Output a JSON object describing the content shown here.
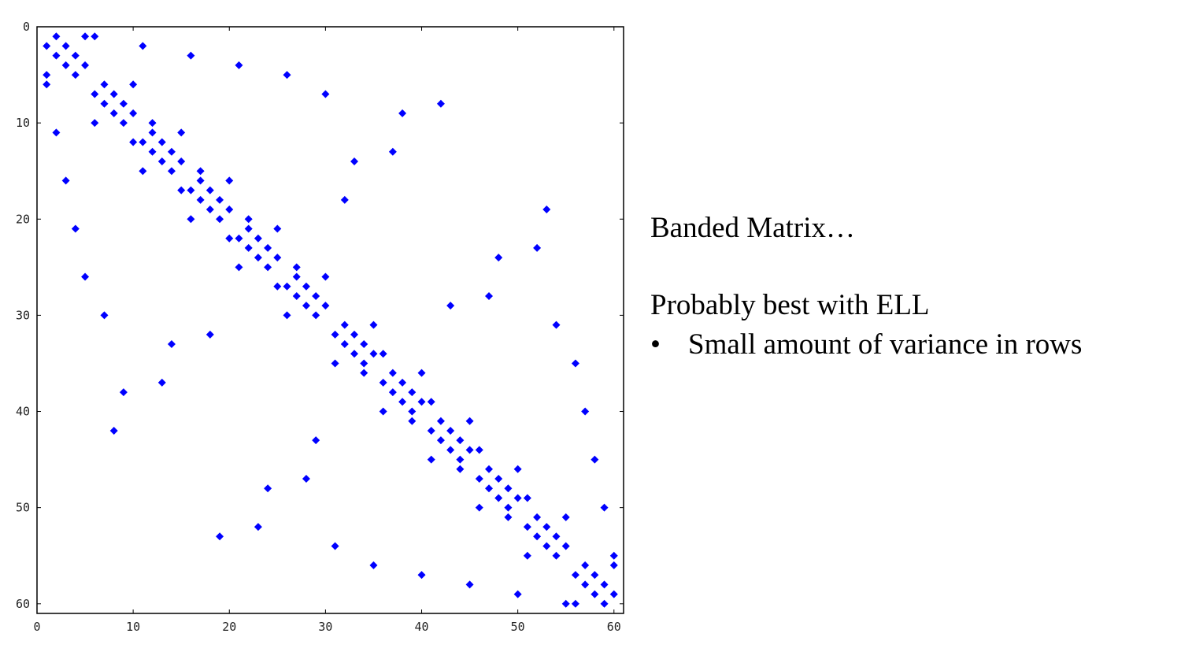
{
  "chart_data": {
    "type": "scatter",
    "title": "",
    "xlabel": "",
    "ylabel": "",
    "xlim": [
      0,
      61
    ],
    "ylim": [
      0,
      61
    ],
    "y_inverted": true,
    "x_ticks": [
      0,
      10,
      20,
      30,
      40,
      50,
      60
    ],
    "y_ticks": [
      0,
      10,
      20,
      30,
      40,
      50,
      60
    ],
    "marker": "diamond",
    "marker_color": "#0000ff",
    "points": [
      [
        1,
        2
      ],
      [
        1,
        5
      ],
      [
        1,
        6
      ],
      [
        2,
        1
      ],
      [
        2,
        3
      ],
      [
        2,
        11
      ],
      [
        3,
        2
      ],
      [
        3,
        4
      ],
      [
        3,
        16
      ],
      [
        4,
        3
      ],
      [
        4,
        5
      ],
      [
        4,
        21
      ],
      [
        5,
        1
      ],
      [
        5,
        4
      ],
      [
        5,
        26
      ],
      [
        6,
        1
      ],
      [
        6,
        7
      ],
      [
        6,
        10
      ],
      [
        7,
        6
      ],
      [
        7,
        8
      ],
      [
        7,
        30
      ],
      [
        8,
        7
      ],
      [
        8,
        9
      ],
      [
        8,
        42
      ],
      [
        9,
        8
      ],
      [
        9,
        10
      ],
      [
        9,
        38
      ],
      [
        10,
        6
      ],
      [
        10,
        9
      ],
      [
        10,
        12
      ],
      [
        11,
        2
      ],
      [
        11,
        12
      ],
      [
        11,
        15
      ],
      [
        12,
        10
      ],
      [
        12,
        11
      ],
      [
        12,
        13
      ],
      [
        13,
        12
      ],
      [
        13,
        14
      ],
      [
        13,
        37
      ],
      [
        14,
        13
      ],
      [
        14,
        15
      ],
      [
        14,
        33
      ],
      [
        15,
        11
      ],
      [
        15,
        14
      ],
      [
        15,
        17
      ],
      [
        16,
        3
      ],
      [
        16,
        17
      ],
      [
        16,
        20
      ],
      [
        17,
        15
      ],
      [
        17,
        16
      ],
      [
        17,
        18
      ],
      [
        18,
        17
      ],
      [
        18,
        19
      ],
      [
        18,
        32
      ],
      [
        19,
        18
      ],
      [
        19,
        20
      ],
      [
        19,
        53
      ],
      [
        20,
        16
      ],
      [
        20,
        19
      ],
      [
        20,
        22
      ],
      [
        21,
        4
      ],
      [
        21,
        22
      ],
      [
        21,
        25
      ],
      [
        22,
        20
      ],
      [
        22,
        21
      ],
      [
        22,
        23
      ],
      [
        23,
        22
      ],
      [
        23,
        24
      ],
      [
        23,
        52
      ],
      [
        24,
        23
      ],
      [
        24,
        25
      ],
      [
        24,
        48
      ],
      [
        25,
        21
      ],
      [
        25,
        24
      ],
      [
        25,
        27
      ],
      [
        26,
        5
      ],
      [
        26,
        27
      ],
      [
        26,
        30
      ],
      [
        27,
        25
      ],
      [
        27,
        26
      ],
      [
        27,
        28
      ],
      [
        28,
        27
      ],
      [
        28,
        29
      ],
      [
        28,
        47
      ],
      [
        29,
        28
      ],
      [
        29,
        30
      ],
      [
        29,
        43
      ],
      [
        30,
        7
      ],
      [
        30,
        26
      ],
      [
        30,
        29
      ],
      [
        31,
        32
      ],
      [
        31,
        35
      ],
      [
        31,
        54
      ],
      [
        32,
        18
      ],
      [
        32,
        31
      ],
      [
        32,
        33
      ],
      [
        33,
        14
      ],
      [
        33,
        32
      ],
      [
        33,
        34
      ],
      [
        34,
        33
      ],
      [
        34,
        35
      ],
      [
        34,
        36
      ],
      [
        35,
        31
      ],
      [
        35,
        34
      ],
      [
        35,
        56
      ],
      [
        36,
        34
      ],
      [
        36,
        37
      ],
      [
        36,
        40
      ],
      [
        37,
        13
      ],
      [
        37,
        36
      ],
      [
        37,
        38
      ],
      [
        38,
        9
      ],
      [
        38,
        37
      ],
      [
        38,
        39
      ],
      [
        39,
        38
      ],
      [
        39,
        40
      ],
      [
        39,
        41
      ],
      [
        40,
        36
      ],
      [
        40,
        39
      ],
      [
        40,
        57
      ],
      [
        41,
        39
      ],
      [
        41,
        42
      ],
      [
        41,
        45
      ],
      [
        42,
        8
      ],
      [
        42,
        41
      ],
      [
        42,
        43
      ],
      [
        43,
        29
      ],
      [
        43,
        42
      ],
      [
        43,
        44
      ],
      [
        44,
        43
      ],
      [
        44,
        45
      ],
      [
        44,
        46
      ],
      [
        45,
        41
      ],
      [
        45,
        44
      ],
      [
        45,
        58
      ],
      [
        46,
        44
      ],
      [
        46,
        47
      ],
      [
        46,
        50
      ],
      [
        47,
        28
      ],
      [
        47,
        46
      ],
      [
        47,
        48
      ],
      [
        48,
        24
      ],
      [
        48,
        47
      ],
      [
        48,
        49
      ],
      [
        49,
        48
      ],
      [
        49,
        50
      ],
      [
        49,
        51
      ],
      [
        50,
        46
      ],
      [
        50,
        49
      ],
      [
        50,
        59
      ],
      [
        51,
        49
      ],
      [
        51,
        52
      ],
      [
        51,
        55
      ],
      [
        52,
        23
      ],
      [
        52,
        51
      ],
      [
        52,
        53
      ],
      [
        53,
        19
      ],
      [
        53,
        52
      ],
      [
        53,
        54
      ],
      [
        54,
        31
      ],
      [
        54,
        53
      ],
      [
        54,
        55
      ],
      [
        55,
        51
      ],
      [
        55,
        54
      ],
      [
        55,
        60
      ],
      [
        56,
        35
      ],
      [
        56,
        57
      ],
      [
        56,
        60
      ],
      [
        57,
        40
      ],
      [
        57,
        56
      ],
      [
        57,
        58
      ],
      [
        58,
        45
      ],
      [
        58,
        57
      ],
      [
        58,
        59
      ],
      [
        59,
        50
      ],
      [
        59,
        58
      ],
      [
        59,
        60
      ],
      [
        60,
        55
      ],
      [
        60,
        56
      ],
      [
        60,
        59
      ]
    ]
  },
  "text": {
    "heading": "Banded Matrix…",
    "subheading": "Probably best with ELL",
    "bullet_symbol": "•",
    "bullet": "Small amount of variance in rows"
  }
}
